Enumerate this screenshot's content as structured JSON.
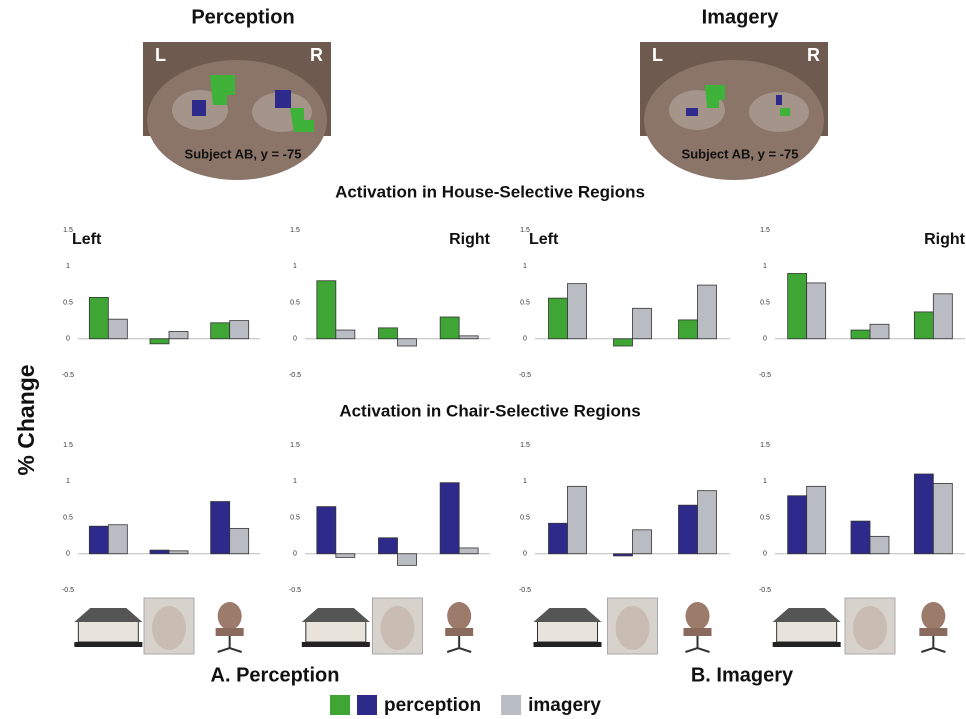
{
  "header": {
    "brains": [
      {
        "title": "Perception",
        "left": "L",
        "right": "R",
        "caption": "Subject AB, y = -75"
      },
      {
        "title": "Imagery",
        "left": "L",
        "right": "R",
        "caption": "Subject AB, y = -75"
      }
    ],
    "section_titles": [
      "Activation in House-Selective Regions",
      "Activation in Chair-Selective Regions"
    ],
    "y_axis_label": "% Change",
    "panel_labels": [
      "A.  Perception",
      "B.  Imagery"
    ],
    "legend": [
      {
        "name": "perception",
        "colors": [
          "#3fa535",
          "#2e2a8c"
        ]
      },
      {
        "name": "imagery",
        "colors": [
          "#b9bcc2"
        ]
      }
    ]
  },
  "chart_data": [
    {
      "type": "bar",
      "label": "Left",
      "label_corner": "upper left",
      "categories": [
        null,
        null,
        null
      ],
      "ylim": [
        -0.5,
        1.5
      ],
      "yticks": [
        1.5,
        1,
        0.5,
        0,
        -0.5
      ],
      "series": [
        {
          "color": "#3fa535",
          "values": [
            0.57,
            -0.07,
            0.22
          ]
        },
        {
          "color": "#b9bcc2",
          "values": [
            0.27,
            0.1,
            0.25
          ]
        }
      ]
    },
    {
      "type": "bar",
      "label": "Right",
      "label_corner": "upper right",
      "categories": [
        null,
        null,
        null
      ],
      "ylim": [
        -0.5,
        1.5
      ],
      "yticks": [
        1.5,
        1,
        0.5,
        0,
        -0.5
      ],
      "series": [
        {
          "color": "#3fa535",
          "values": [
            0.8,
            0.15,
            0.3
          ]
        },
        {
          "color": "#b9bcc2",
          "values": [
            0.12,
            -0.1,
            0.04
          ]
        }
      ]
    },
    {
      "type": "bar",
      "label": "Left",
      "label_corner": "upper left",
      "categories": [
        null,
        null,
        null
      ],
      "ylim": [
        -0.5,
        1.5
      ],
      "yticks": [
        1.5,
        1,
        0.5,
        0,
        -0.5
      ],
      "series": [
        {
          "color": "#3fa535",
          "values": [
            0.56,
            -0.1,
            0.26
          ]
        },
        {
          "color": "#b9bcc2",
          "values": [
            0.76,
            0.42,
            0.74
          ]
        }
      ]
    },
    {
      "type": "bar",
      "label": "Right",
      "label_corner": "upper right",
      "categories": [
        null,
        null,
        null
      ],
      "ylim": [
        -0.5,
        1.5
      ],
      "yticks": [
        1.5,
        1,
        0.5,
        0,
        -0.5
      ],
      "series": [
        {
          "color": "#3fa535",
          "values": [
            0.9,
            0.12,
            0.37
          ]
        },
        {
          "color": "#b9bcc2",
          "values": [
            0.77,
            0.2,
            0.62
          ]
        }
      ]
    },
    {
      "type": "bar",
      "categories": [
        null,
        null,
        null
      ],
      "ylim": [
        -0.5,
        1.5
      ],
      "yticks": [
        1.5,
        1,
        0.5,
        0,
        -0.5
      ],
      "series": [
        {
          "color": "#2e2a8c",
          "values": [
            0.38,
            0.05,
            0.72
          ]
        },
        {
          "color": "#b9bcc2",
          "values": [
            0.4,
            0.04,
            0.35
          ]
        }
      ]
    },
    {
      "type": "bar",
      "categories": [
        null,
        null,
        null
      ],
      "ylim": [
        -0.5,
        1.5
      ],
      "yticks": [
        1.5,
        1,
        0.5,
        0,
        -0.5
      ],
      "series": [
        {
          "color": "#2e2a8c",
          "values": [
            0.65,
            0.22,
            0.98
          ]
        },
        {
          "color": "#b9bcc2",
          "values": [
            -0.05,
            -0.16,
            0.08
          ]
        }
      ]
    },
    {
      "type": "bar",
      "categories": [
        null,
        null,
        null
      ],
      "ylim": [
        -0.5,
        1.5
      ],
      "yticks": [
        1.5,
        1,
        0.5,
        0,
        -0.5
      ],
      "series": [
        {
          "color": "#2e2a8c",
          "values": [
            0.42,
            -0.03,
            0.67
          ]
        },
        {
          "color": "#b9bcc2",
          "values": [
            0.93,
            0.33,
            0.87
          ]
        }
      ]
    },
    {
      "type": "bar",
      "categories": [
        null,
        null,
        null
      ],
      "ylim": [
        -0.5,
        1.5
      ],
      "yticks": [
        1.5,
        1,
        0.5,
        0,
        -0.5
      ],
      "series": [
        {
          "color": "#2e2a8c",
          "values": [
            0.8,
            0.45,
            1.1
          ]
        },
        {
          "color": "#b9bcc2",
          "values": [
            0.93,
            0.24,
            0.97
          ]
        }
      ]
    }
  ]
}
